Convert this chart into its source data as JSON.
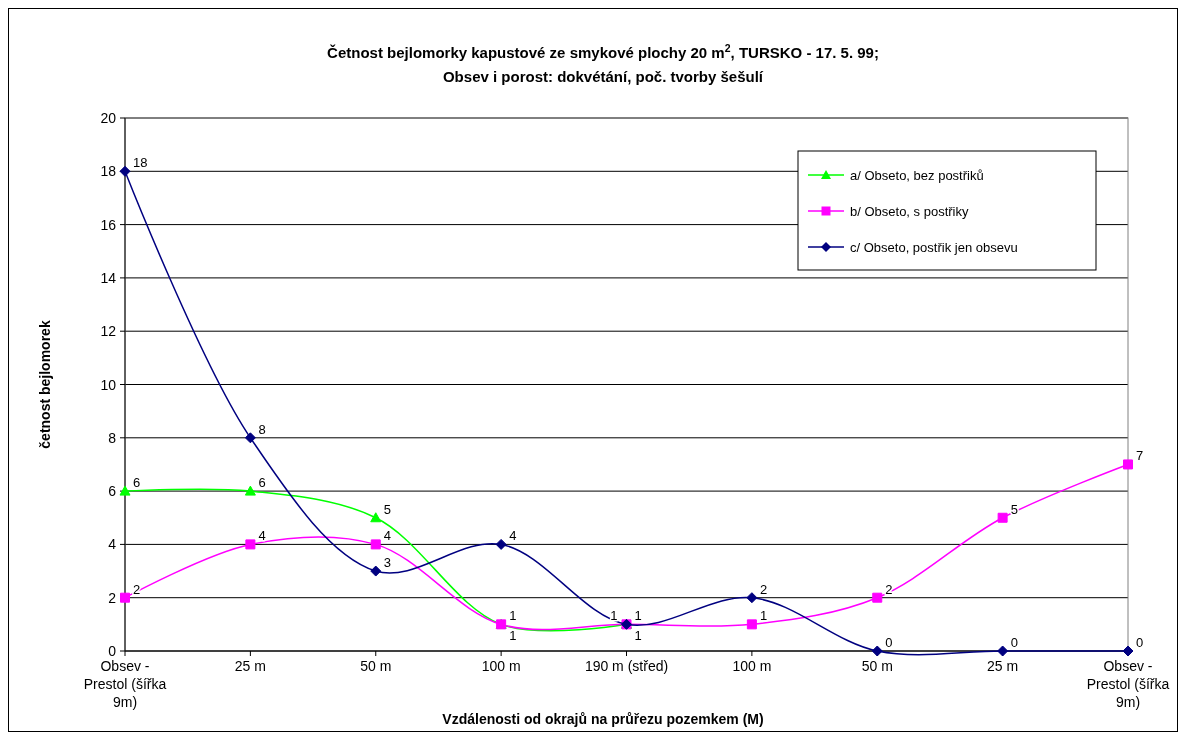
{
  "chart_data": {
    "type": "line",
    "title": "Četnost bejlomorky kapustové ze smykové plochy 20 m$^{2}$, TURSKO - 17. 5. 99;",
    "subtitle": "Obsev i porost: dokvétání, poč. tvorby šešulí",
    "xlabel": "Vzdálenosti od okrajů na průřezu pozemkem (M)",
    "ylabel": "četnost bejlomorek",
    "categories": [
      "Obsev - Prestol (šířka 9m)",
      "25 m",
      "50 m",
      "100 m",
      "190 m (střed)",
      "100 m",
      "50 m",
      "25 m",
      "Obsev - Prestol (šířka 9m)"
    ],
    "series": [
      {
        "name": "a/ Obseto, bez postřiků",
        "color": "#00ff00",
        "marker": "triangle",
        "values": [
          6,
          6,
          5,
          1,
          1,
          null,
          null,
          null,
          null
        ]
      },
      {
        "name": "b/ Obseto, s postřiky",
        "color": "#ff00ff",
        "marker": "square",
        "values": [
          2,
          4,
          4,
          1,
          1,
          1,
          2,
          5,
          7
        ]
      },
      {
        "name": "c/ Obseto, postřik jen obsevu",
        "color": "#000080",
        "marker": "diamond",
        "values": [
          18,
          8,
          3,
          4,
          1,
          2,
          0,
          0,
          0
        ]
      }
    ],
    "ylim": [
      0,
      20
    ],
    "yticks": [
      0,
      2,
      4,
      6,
      8,
      10,
      12,
      14,
      16,
      18,
      20
    ],
    "grid": "y",
    "legend": "top right",
    "data_labels": true,
    "line_style": "solid"
  }
}
